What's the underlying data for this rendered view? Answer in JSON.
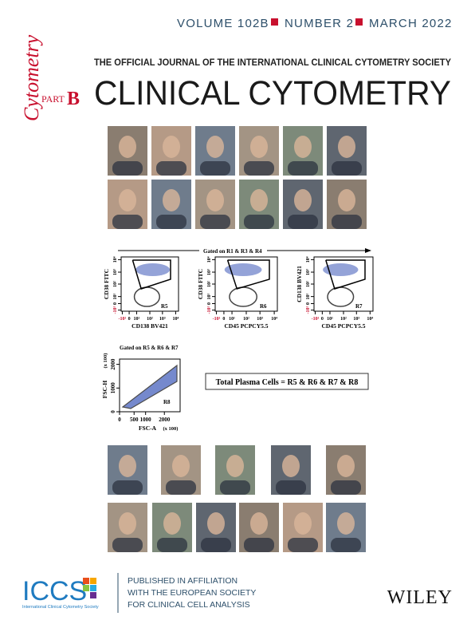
{
  "header": {
    "volume": "VOLUME 102B",
    "number": "NUMBER 2",
    "date": "MARCH 2022"
  },
  "masthead": {
    "brand": "Cytometry",
    "part": "PART",
    "part_letter": "B",
    "subtitle": "THE OFFICIAL JOURNAL OF THE INTERNATIONAL CLINICAL CYTOMETRY SOCIETY",
    "title": "CLINICAL CYTOMETRY"
  },
  "figure": {
    "gating_top": "Gated on R1 & R3 & R4",
    "plots": [
      {
        "y_label": "CD38 FITC",
        "x_label": "CD138 BV421",
        "gate": "R5",
        "x_ticks": [
          "-10¹",
          "0",
          "10¹",
          "10²",
          "10³",
          "10⁴"
        ],
        "y_ticks": [
          "-10¹",
          "0",
          "10¹",
          "10²",
          "10³",
          "10⁴"
        ]
      },
      {
        "y_label": "CD38 FITC",
        "x_label": "CD45 PCPCY5.5",
        "gate": "R6",
        "x_ticks": [
          "-10¹",
          "0",
          "10¹",
          "10²",
          "10³",
          "10⁴"
        ],
        "y_ticks": [
          "-10¹",
          "0",
          "10¹",
          "10²",
          "10³",
          "10⁴"
        ]
      },
      {
        "y_label": "CD138 BV421",
        "x_label": "CD45 PCPCY5.5",
        "gate": "R7",
        "x_ticks": [
          "-10¹",
          "0",
          "10¹",
          "10²",
          "10³",
          "10⁴"
        ],
        "y_ticks": [
          "-10¹",
          "0",
          "10¹",
          "10²",
          "10³",
          "10⁴"
        ]
      }
    ],
    "scatter": {
      "gating": "Gated on R5 & R6 & R7",
      "y_label": "FSC-H",
      "y_unit": "(x 100)",
      "x_label": "FSC-A",
      "x_unit": "(x 100)",
      "gate": "R8",
      "x_ticks": [
        0,
        500,
        1000,
        2000
      ],
      "y_ticks": [
        0,
        1000,
        2000
      ]
    },
    "summary": "Total Plasma Cells = R5 & R6 & R7 & R8"
  },
  "footer": {
    "logo": "ICCS",
    "logo_caption": "International Clinical Cytometry Society",
    "affiliation": [
      "PUBLISHED IN AFFILIATION",
      "WITH THE EUROPEAN SOCIETY",
      "FOR CLINICAL CELL ANALYSIS"
    ],
    "publisher": "WILEY"
  }
}
